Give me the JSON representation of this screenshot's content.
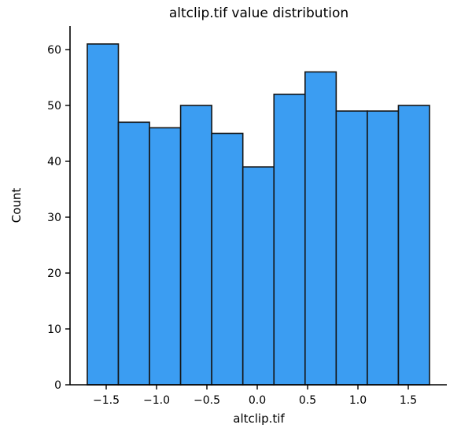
{
  "figure": {
    "kind": "matplotlib-histogram-figure",
    "background": "#ffffff"
  },
  "chart_data": {
    "type": "bar",
    "subtype": "histogram",
    "title": "altclip.tif value distribution",
    "xlabel": "altclip.tif",
    "ylabel": "Count",
    "counts": [
      61,
      47,
      46,
      50,
      45,
      39,
      52,
      56,
      49,
      49,
      50
    ],
    "bin_edges": [
      -1.688,
      -1.379,
      -1.07,
      -0.761,
      -0.452,
      -0.143,
      0.166,
      0.475,
      0.784,
      1.093,
      1.402,
      1.711
    ],
    "xticks": [
      {
        "v": -1.5,
        "label": "−1.5"
      },
      {
        "v": -1.0,
        "label": "−1.0"
      },
      {
        "v": -0.5,
        "label": "−0.5"
      },
      {
        "v": 0.0,
        "label": "0.0"
      },
      {
        "v": 0.5,
        "label": "0.5"
      },
      {
        "v": 1.0,
        "label": "1.0"
      },
      {
        "v": 1.5,
        "label": "1.5"
      }
    ],
    "yticks": [
      {
        "v": 0,
        "label": "0"
      },
      {
        "v": 10,
        "label": "10"
      },
      {
        "v": 20,
        "label": "20"
      },
      {
        "v": 30,
        "label": "30"
      },
      {
        "v": 40,
        "label": "40"
      },
      {
        "v": 50,
        "label": "50"
      },
      {
        "v": 60,
        "label": "60"
      }
    ],
    "xlim": [
      -1.85,
      1.88
    ],
    "ylim": [
      0,
      64.2
    ],
    "grid": false,
    "legend_position": "none",
    "bar_fill": "#3B9DF2",
    "bar_edge": "#151515",
    "axis_color": "#000000"
  }
}
